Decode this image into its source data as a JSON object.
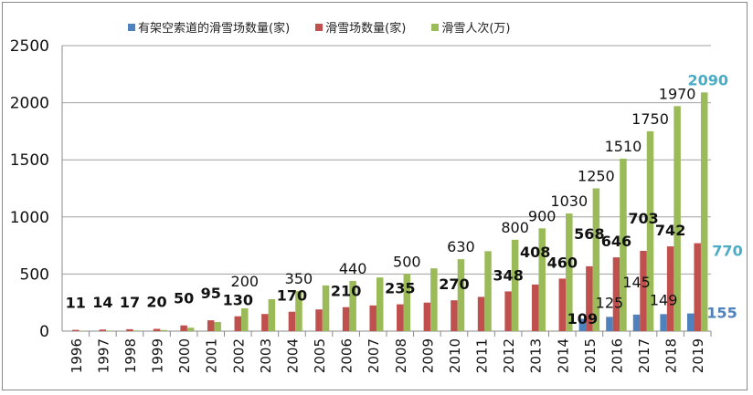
{
  "chart_data": {
    "type": "bar",
    "title": "",
    "xlabel": "",
    "ylabel": "",
    "ylim": [
      0,
      2500
    ],
    "yticks": [
      0,
      500,
      1000,
      1500,
      2000,
      2500
    ],
    "grid": true,
    "legend_position": "top",
    "categories": [
      "1996",
      "1997",
      "1998",
      "1999",
      "2000",
      "2001",
      "2002",
      "2003",
      "2004",
      "2005",
      "2006",
      "2007",
      "2008",
      "2009",
      "2010",
      "2011",
      "2012",
      "2013",
      "2014",
      "2015",
      "2016",
      "2017",
      "2018",
      "2019"
    ],
    "series": [
      {
        "name": "有架空索道的滑雪场数量(家)",
        "color": "#4f81bd",
        "values": [
          null,
          null,
          null,
          null,
          null,
          null,
          null,
          null,
          null,
          null,
          null,
          null,
          null,
          null,
          null,
          null,
          null,
          null,
          null,
          109,
          125,
          145,
          149,
          155
        ],
        "labels": [
          null,
          null,
          null,
          null,
          null,
          null,
          null,
          null,
          null,
          null,
          null,
          null,
          null,
          null,
          null,
          null,
          null,
          null,
          null,
          "109",
          "125",
          "145",
          "149",
          "155"
        ]
      },
      {
        "name": "滑雪场数量(家)",
        "color": "#c0504d",
        "values": [
          11,
          14,
          17,
          20,
          50,
          95,
          130,
          150,
          170,
          190,
          210,
          225,
          235,
          250,
          270,
          300,
          348,
          408,
          460,
          568,
          646,
          703,
          742,
          770
        ],
        "labels": [
          "11",
          "14",
          "17",
          "20",
          "50",
          "95",
          "130",
          null,
          "170",
          null,
          "210",
          null,
          "235",
          null,
          "270",
          null,
          "348",
          "408",
          "460",
          "568",
          "646",
          "703",
          "742",
          "770"
        ]
      },
      {
        "name": "滑雪人次(万)",
        "color": "#9bbb59",
        "values": [
          2,
          5,
          6,
          10,
          30,
          80,
          200,
          280,
          350,
          400,
          440,
          470,
          500,
          550,
          630,
          700,
          800,
          900,
          1030,
          1250,
          1510,
          1750,
          1970,
          2090
        ],
        "labels": [
          null,
          null,
          null,
          null,
          null,
          null,
          "200",
          null,
          "350",
          null,
          "440",
          null,
          "500",
          null,
          "630",
          null,
          "800",
          "900",
          "1030",
          "1250",
          "1510",
          "1750",
          "1970",
          "2090"
        ]
      }
    ],
    "highlight_label_color": "#4bacc6"
  }
}
